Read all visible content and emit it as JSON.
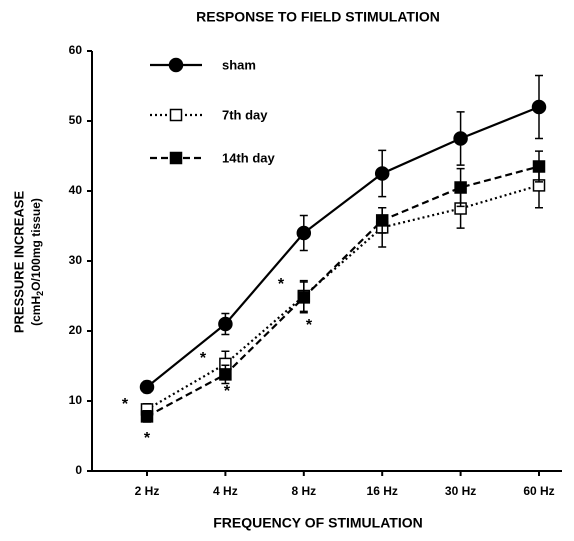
{
  "chart_data": {
    "type": "line",
    "title": "RESPONSE TO FIELD STIMULATION",
    "xlabel": "FREQUENCY OF STIMULATION",
    "ylabel": "PRESSURE  INCREASE",
    "ylabel_units": [
      "(cmH",
      "2",
      "O/100mg  tissue)"
    ],
    "categories": [
      "2 Hz",
      "4 Hz",
      "8 Hz",
      "16 Hz",
      "30 Hz",
      "60 Hz"
    ],
    "series": [
      {
        "name": "sham",
        "color": "#000000",
        "linestyle": "solid",
        "marker": "filled-circle",
        "values": [
          12,
          21,
          34,
          42.5,
          47.5,
          52
        ],
        "errors": [
          0.8,
          1.5,
          2.5,
          3.3,
          3.8,
          4.5
        ]
      },
      {
        "name": "7th day",
        "color": "#000000",
        "linestyle": "dotted",
        "marker": "open-square",
        "values": [
          8.8,
          15.3,
          25,
          34.8,
          37.5,
          40.8
        ],
        "errors": [
          0.8,
          1.8,
          2.2,
          2.8,
          2.8,
          3.2
        ]
      },
      {
        "name": "14th day",
        "color": "#000000",
        "linestyle": "dashed",
        "marker": "filled-square",
        "values": [
          7.8,
          13.8,
          24.8,
          35.8,
          40.5,
          43.5
        ],
        "errors": [
          0.8,
          1.3,
          2.2,
          1.8,
          2.7,
          2.2
        ]
      }
    ],
    "annotations": [
      "*",
      "*",
      "*",
      "*",
      "*",
      "*"
    ],
    "ylim": [
      0,
      60
    ],
    "yticks": [
      0,
      10,
      20,
      30,
      40,
      50,
      60
    ],
    "legend": "upper-left",
    "grid": false
  }
}
